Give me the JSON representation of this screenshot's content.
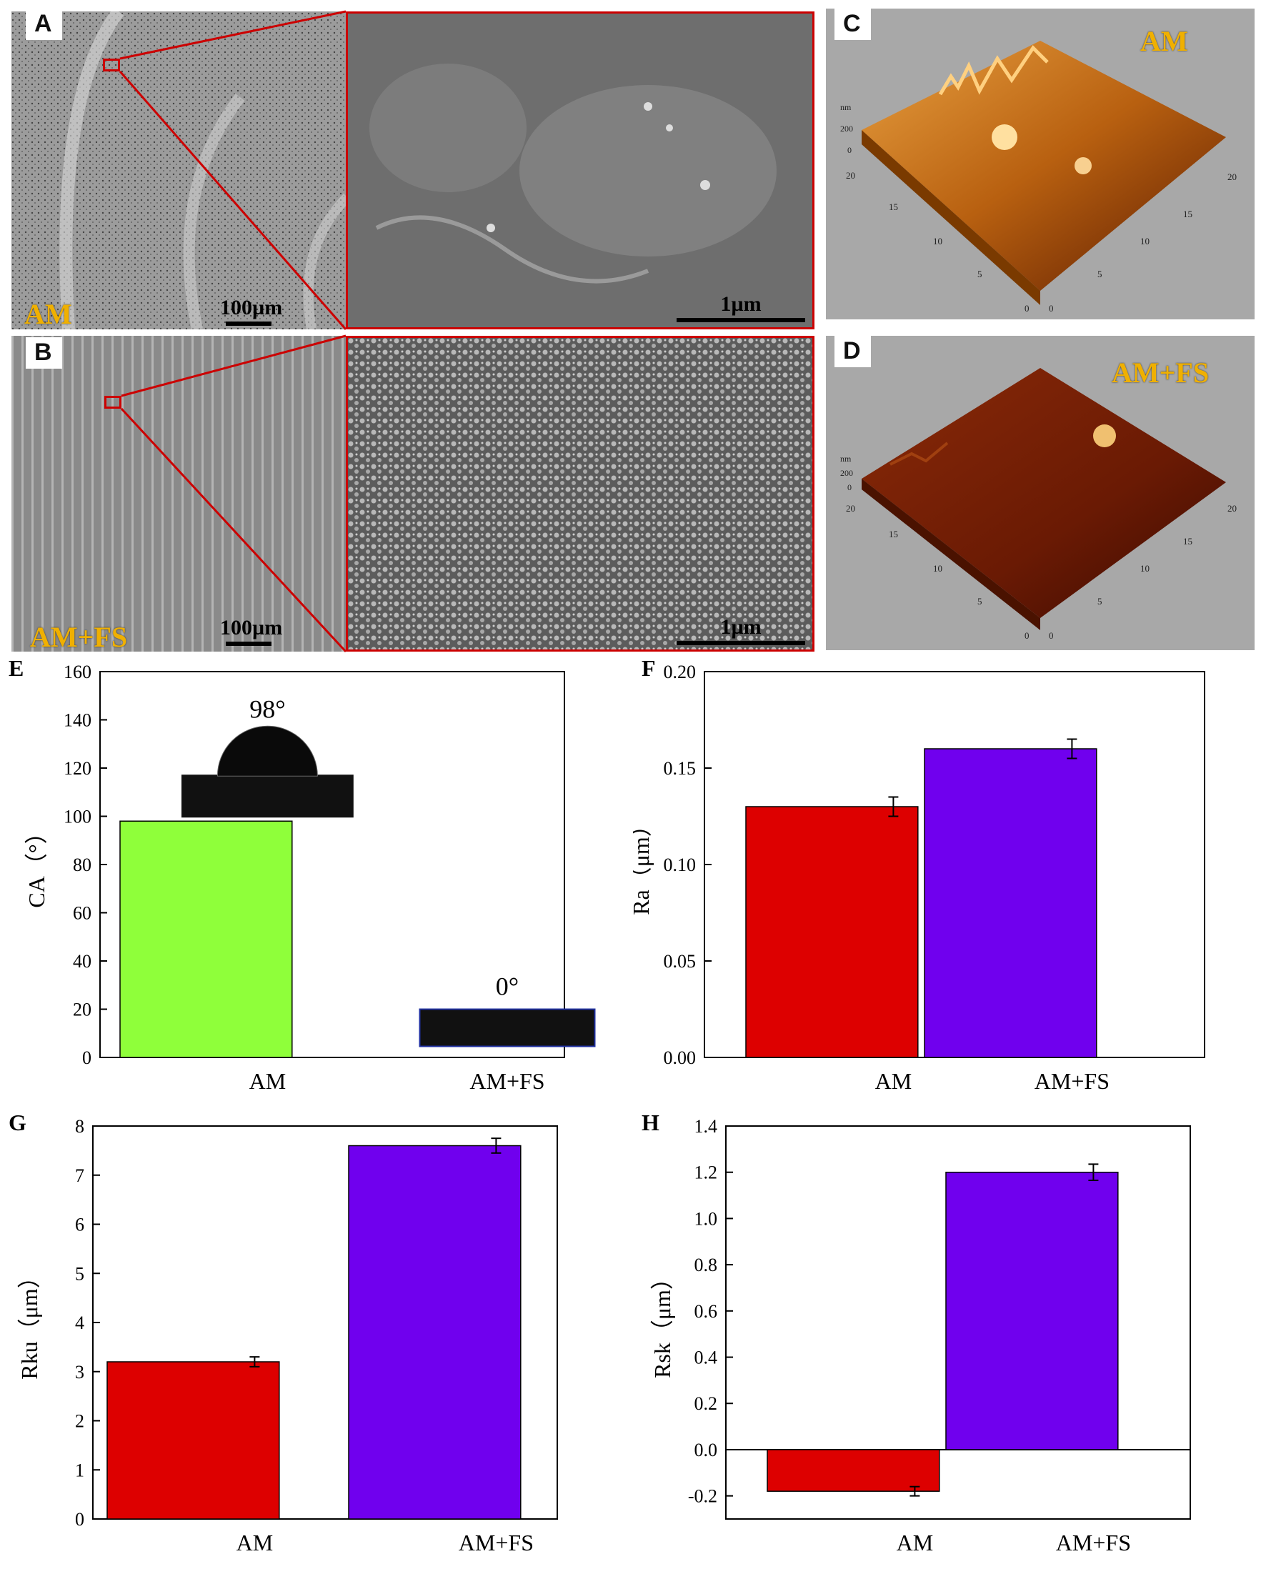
{
  "panels": {
    "A": {
      "letter": "A",
      "sample": "AM",
      "scale_left": "100µm",
      "scale_right": "1µm"
    },
    "B": {
      "letter": "B",
      "sample": "AM+FS",
      "scale_left": "100µm",
      "scale_right": "1µm"
    },
    "C": {
      "letter": "C",
      "sample": "AM",
      "unit": "nm",
      "zticks": [
        "200",
        "0"
      ],
      "xticks": [
        "20",
        "15",
        "10",
        "5",
        "0"
      ],
      "yticks": [
        "20",
        "15",
        "10",
        "5",
        "0"
      ]
    },
    "D": {
      "letter": "D",
      "sample": "AM+FS",
      "unit": "nm",
      "zticks": [
        "200",
        "0"
      ],
      "xticks": [
        "20",
        "15",
        "10",
        "5",
        "0"
      ],
      "yticks": [
        "20",
        "15",
        "10",
        "5",
        "0"
      ]
    }
  },
  "colors": {
    "green": "#8fff3a",
    "red": "#dd0000",
    "purple": "#7000ee",
    "zoom": "#cc0000",
    "afm_dark": "#5a1a00",
    "afm_light": "#e8a040"
  },
  "chart_data": [
    {
      "id": "E",
      "letter": "E",
      "type": "bar",
      "categories": [
        "AM",
        "AM+FS"
      ],
      "values": [
        98,
        0
      ],
      "ylabel": "CA（°）",
      "ylim": [
        0,
        160
      ],
      "yticks": [
        "0",
        "20",
        "40",
        "60",
        "80",
        "100",
        "120",
        "140",
        "160"
      ],
      "yticks_values": [
        0,
        20,
        40,
        60,
        80,
        100,
        120,
        140,
        160
      ],
      "annotations": [
        "98°",
        "0°"
      ],
      "colors": [
        "#8fff3a",
        "#8fff3a"
      ]
    },
    {
      "id": "F",
      "letter": "F",
      "type": "bar",
      "categories": [
        "AM",
        "AM+FS"
      ],
      "values": [
        0.13,
        0.16
      ],
      "errors": [
        0.005,
        0.005
      ],
      "ylabel": "Ra（μm）",
      "ylim": [
        0,
        0.2
      ],
      "yticks": [
        "0.00",
        "0.05",
        "0.10",
        "0.15",
        "0.20"
      ],
      "yticks_values": [
        0,
        0.05,
        0.1,
        0.15,
        0.2
      ],
      "colors": [
        "#dd0000",
        "#7000ee"
      ]
    },
    {
      "id": "G",
      "letter": "G",
      "type": "bar",
      "categories": [
        "AM",
        "AM+FS"
      ],
      "values": [
        3.2,
        7.6
      ],
      "errors": [
        0.1,
        0.15
      ],
      "ylabel": "Rku（μm）",
      "ylim": [
        0,
        8
      ],
      "yticks": [
        "0",
        "1",
        "2",
        "3",
        "4",
        "5",
        "6",
        "7",
        "8"
      ],
      "yticks_values": [
        0,
        1,
        2,
        3,
        4,
        5,
        6,
        7,
        8
      ],
      "colors": [
        "#dd0000",
        "#7000ee"
      ]
    },
    {
      "id": "H",
      "letter": "H",
      "type": "bar",
      "categories": [
        "AM",
        "AM+FS"
      ],
      "values": [
        -0.18,
        1.2
      ],
      "errors": [
        0.02,
        0.035
      ],
      "ylabel": "Rsk（μm）",
      "ylim": [
        -0.3,
        1.4
      ],
      "yticks": [
        "-0.2",
        "0.0",
        "0.2",
        "0.4",
        "0.6",
        "0.8",
        "1.0",
        "1.2",
        "1.4"
      ],
      "yticks_values": [
        -0.2,
        0,
        0.2,
        0.4,
        0.6,
        0.8,
        1.0,
        1.2,
        1.4
      ],
      "colors": [
        "#dd0000",
        "#7000ee"
      ]
    }
  ]
}
